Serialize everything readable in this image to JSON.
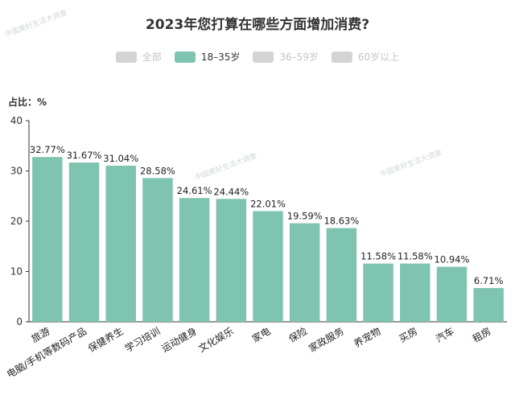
{
  "chart_data": {
    "type": "bar",
    "title": "2023年您打算在哪些方面增加消费?",
    "ylabel": "占比：%",
    "ylim": [
      0,
      40
    ],
    "yticks": [
      0,
      10,
      20,
      30,
      40
    ],
    "legend": {
      "placement": "top",
      "items": [
        {
          "label": "全部",
          "active": false,
          "color": "#d4d4d4"
        },
        {
          "label": "18–35岁",
          "active": true,
          "color": "#7ec4b0"
        },
        {
          "label": "36–59岁",
          "active": false,
          "color": "#d4d4d4"
        },
        {
          "label": "60岁以上",
          "active": false,
          "color": "#d4d4d4"
        }
      ]
    },
    "bar_color": "#7ec4b0",
    "categories": [
      "旅游",
      "电脑/手机等数码产品",
      "保健养生",
      "学习培训",
      "运动健身",
      "文化娱乐",
      "家电",
      "保险",
      "家政服务",
      "养宠物",
      "买房",
      "汽车",
      "租房"
    ],
    "values": [
      32.77,
      31.67,
      31.04,
      28.58,
      24.61,
      24.44,
      22.01,
      19.59,
      18.63,
      11.58,
      11.58,
      10.94,
      6.71
    ],
    "value_labels": [
      "32.77%",
      "31.67%",
      "31.04%",
      "28.58%",
      "24.61%",
      "24.44%",
      "22.01%",
      "19.59%",
      "18.63%",
      "11.58%",
      "11.58%",
      "10.94%",
      "6.71%"
    ]
  },
  "watermark": "中国美好生活大调查"
}
